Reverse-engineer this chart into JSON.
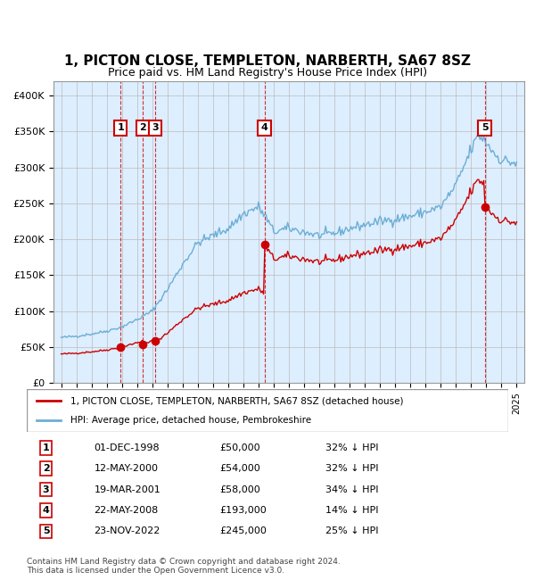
{
  "title": "1, PICTON CLOSE, TEMPLETON, NARBERTH, SA67 8SZ",
  "subtitle": "Price paid vs. HM Land Registry's House Price Index (HPI)",
  "legend_entry1": "1, PICTON CLOSE, TEMPLETON, NARBERTH, SA67 8SZ (detached house)",
  "legend_entry2": "HPI: Average price, detached house, Pembrokeshire",
  "footer1": "Contains HM Land Registry data © Crown copyright and database right 2024.",
  "footer2": "This data is licensed under the Open Government Licence v3.0.",
  "transactions": [
    {
      "num": 1,
      "date": "01-DEC-1998",
      "date_val": 1998.917,
      "price": 50000
    },
    {
      "num": 2,
      "date": "12-MAY-2000",
      "date_val": 2000.36,
      "price": 54000
    },
    {
      "num": 3,
      "date": "19-MAR-2001",
      "date_val": 2001.21,
      "price": 58000
    },
    {
      "num": 4,
      "date": "22-MAY-2008",
      "date_val": 2008.39,
      "price": 193000
    },
    {
      "num": 5,
      "date": "23-NOV-2022",
      "date_val": 2022.895,
      "price": 245000
    }
  ],
  "hpi_color": "#6baed6",
  "price_color": "#cc0000",
  "dot_color": "#cc0000",
  "vline_color": "#cc0000",
  "bg_color": "#ddeeff",
  "grid_color": "#bbbbbb",
  "ylim": [
    0,
    420000
  ],
  "xlim_start": 1994.5,
  "xlim_end": 2025.5,
  "yticks": [
    0,
    50000,
    100000,
    150000,
    200000,
    250000,
    300000,
    350000,
    400000
  ],
  "ytick_labels": [
    "£0",
    "£50K",
    "£100K",
    "£150K",
    "£200K",
    "£250K",
    "£300K",
    "£350K",
    "£400K"
  ]
}
